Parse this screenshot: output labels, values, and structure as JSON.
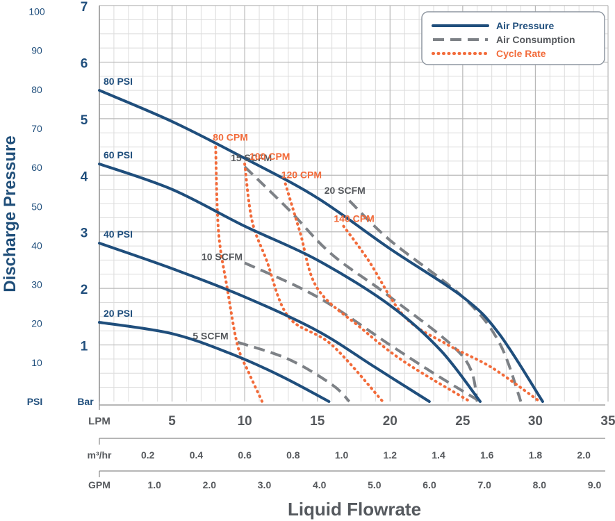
{
  "colors": {
    "navy": "#1f4e7c",
    "gray": "#7d8186",
    "orange": "#f26b3a",
    "grid_major": "#b8b8b8",
    "grid_minor": "#dcdcdc",
    "axis_label": "#1f4e79",
    "text_gray": "#56595d"
  },
  "chart_data": {
    "type": "line",
    "ylabel": "Discharge Pressure",
    "xlabel": "Liquid Flowrate",
    "x_axis_lpm": {
      "unit": "LPM",
      "range": [
        0,
        35
      ],
      "ticks": [
        "5",
        "10",
        "15",
        "20",
        "25",
        "30",
        "35"
      ]
    },
    "x_axis_m3hr": {
      "unit": "m³/hr",
      "ticks": [
        "0.2",
        "0.4",
        "0.6",
        "0.8",
        "1.0",
        "1.2",
        "1.4",
        "1.6",
        "1.8",
        "2.0"
      ]
    },
    "x_axis_gpm": {
      "unit": "GPM",
      "ticks": [
        "1.0",
        "2.0",
        "3.0",
        "4.0",
        "5.0",
        "6.0",
        "7.0",
        "8.0",
        "9.0"
      ]
    },
    "y_axis_psi": {
      "unit": "PSI",
      "ticks": [
        "10",
        "20",
        "30",
        "40",
        "50",
        "60",
        "70",
        "80",
        "90",
        "100"
      ]
    },
    "y_axis_bar": {
      "unit": "Bar",
      "range": [
        0,
        7
      ],
      "ticks": [
        "1",
        "2",
        "3",
        "4",
        "5",
        "6",
        "7"
      ]
    },
    "grid": true,
    "legend": {
      "placement": "top-right",
      "items": [
        {
          "label": "Air Pressure",
          "style": "solid"
        },
        {
          "label": "Air Consumption",
          "style": "dashed"
        },
        {
          "label": "Cycle Rate",
          "style": "dotted"
        }
      ]
    },
    "series": [
      {
        "label": "80 PSI",
        "kind": "air_pressure",
        "points": [
          [
            0,
            5.5
          ],
          [
            5,
            4.95
          ],
          [
            10,
            4.3
          ],
          [
            15,
            3.6
          ],
          [
            20,
            2.7
          ],
          [
            25,
            1.85
          ],
          [
            27.5,
            1.2
          ],
          [
            30.5,
            0.0
          ]
        ]
      },
      {
        "label": "60 PSI",
        "kind": "air_pressure",
        "points": [
          [
            0,
            4.2
          ],
          [
            5,
            3.75
          ],
          [
            10,
            3.1
          ],
          [
            15,
            2.5
          ],
          [
            20,
            1.7
          ],
          [
            23.5,
            0.9
          ],
          [
            26.2,
            0.0
          ]
        ]
      },
      {
        "label": "40 PSI",
        "kind": "air_pressure",
        "points": [
          [
            0,
            2.8
          ],
          [
            5,
            2.35
          ],
          [
            10,
            1.85
          ],
          [
            15,
            1.25
          ],
          [
            19,
            0.6
          ],
          [
            22.7,
            0.0
          ]
        ]
      },
      {
        "label": "20 PSI",
        "kind": "air_pressure",
        "points": [
          [
            0,
            1.4
          ],
          [
            5,
            1.2
          ],
          [
            9,
            0.85
          ],
          [
            12.5,
            0.45
          ],
          [
            15.8,
            0.0
          ]
        ]
      },
      {
        "label": "5 SCFM",
        "kind": "air_consumption",
        "points": [
          [
            9.5,
            1.05
          ],
          [
            13,
            0.75
          ],
          [
            16,
            0.3
          ],
          [
            17.2,
            0.0
          ]
        ]
      },
      {
        "label": "10 SCFM",
        "kind": "air_consumption",
        "points": [
          [
            10,
            2.45
          ],
          [
            15,
            1.85
          ],
          [
            20,
            1.0
          ],
          [
            23,
            0.5
          ],
          [
            26.2,
            0.0
          ]
        ]
      },
      {
        "label": "15 SCFM",
        "kind": "air_consumption",
        "points": [
          [
            10,
            4.15
          ],
          [
            13,
            3.4
          ],
          [
            16,
            2.6
          ],
          [
            20,
            1.85
          ],
          [
            25,
            0.8
          ],
          [
            26,
            0.0
          ]
        ]
      },
      {
        "label": "20 SCFM",
        "kind": "air_consumption",
        "points": [
          [
            17.2,
            3.55
          ],
          [
            20,
            2.85
          ],
          [
            25,
            1.85
          ],
          [
            27.5,
            1.05
          ],
          [
            29,
            0.0
          ]
        ]
      },
      {
        "label": "80 CPM",
        "kind": "cycle_rate",
        "points": [
          [
            8,
            4.5
          ],
          [
            8.2,
            3.0
          ],
          [
            8.8,
            2.0
          ],
          [
            9.5,
            1.0
          ],
          [
            10.3,
            0.5
          ],
          [
            11.2,
            0.0
          ]
        ]
      },
      {
        "label": "100 CPM",
        "kind": "cycle_rate",
        "points": [
          [
            10,
            4.2
          ],
          [
            10.5,
            3.2
          ],
          [
            11.5,
            2.5
          ],
          [
            13,
            1.5
          ],
          [
            16,
            1.0
          ],
          [
            19.5,
            0.0
          ]
        ]
      },
      {
        "label": "120 CPM",
        "kind": "cycle_rate",
        "points": [
          [
            12.8,
            3.85
          ],
          [
            13.8,
            3.0
          ],
          [
            15,
            2.0
          ],
          [
            18,
            1.3
          ],
          [
            21,
            0.7
          ],
          [
            25.5,
            0.0
          ]
        ]
      },
      {
        "label": "140 CPM",
        "kind": "cycle_rate",
        "points": [
          [
            16.8,
            3.1
          ],
          [
            18.5,
            2.5
          ],
          [
            21,
            1.5
          ],
          [
            24,
            1.0
          ],
          [
            27,
            0.6
          ],
          [
            30.3,
            0.0
          ]
        ]
      }
    ]
  }
}
